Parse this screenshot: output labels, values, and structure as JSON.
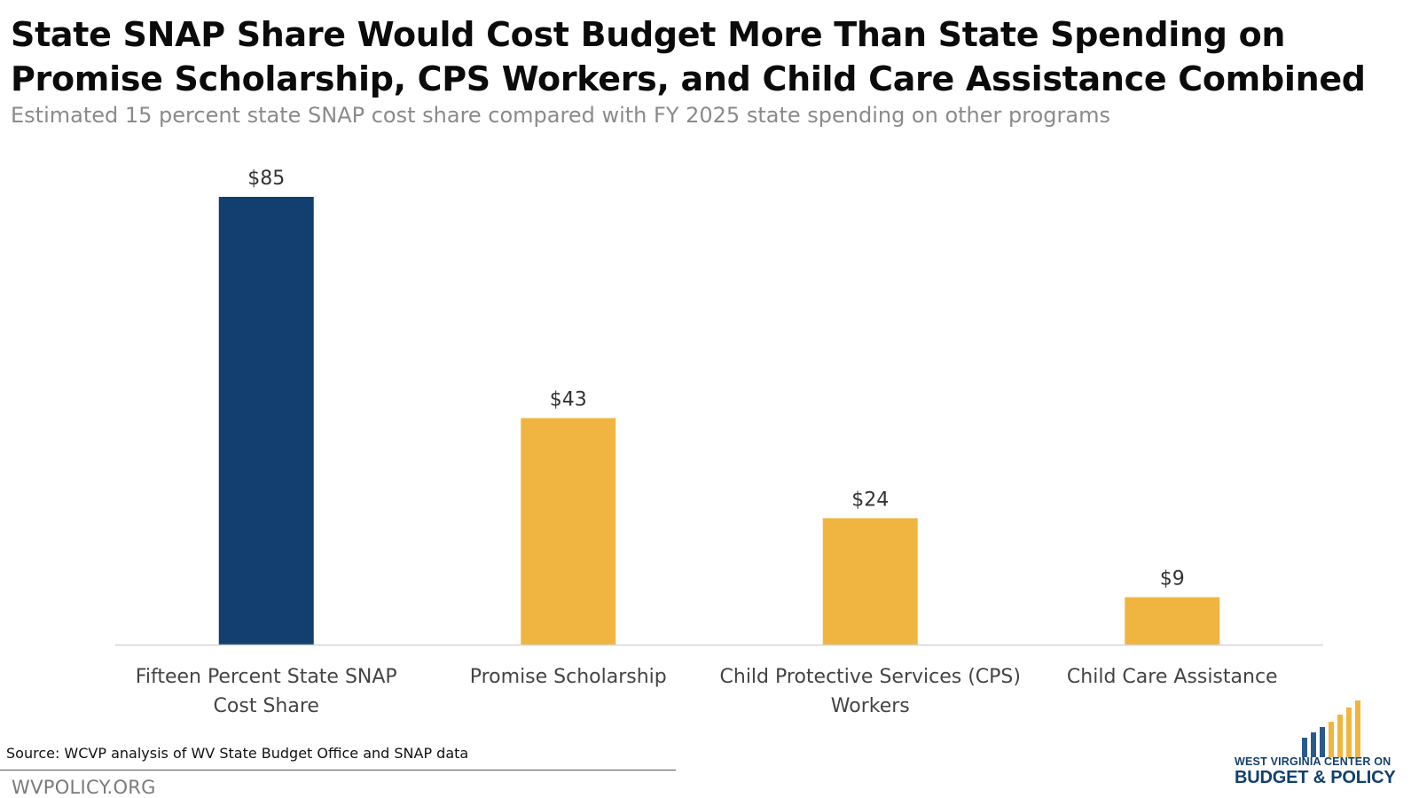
{
  "chart_data": {
    "type": "bar",
    "title": "State SNAP Share Would Cost Budget More Than State Spending on Promise Scholarship, CPS Workers, and Child Care Assistance Combined",
    "subtitle": "Estimated 15 percent state SNAP cost share compared with FY 2025 state spending on other programs",
    "categories": [
      [
        "Fifteen Percent State SNAP",
        "Cost Share"
      ],
      [
        "Promise Scholarship"
      ],
      [
        "Child Protective Services  (CPS)",
        "Workers"
      ],
      [
        "Child Care Assistance"
      ]
    ],
    "values": [
      85,
      43,
      24,
      9
    ],
    "value_labels": [
      "$85",
      "$43",
      "$24",
      "$9"
    ],
    "bar_colors": [
      "#123f70",
      "#f0b541",
      "#f0b541",
      "#f0b541"
    ],
    "ylim": [
      0,
      85
    ],
    "grid": false,
    "legend": "none"
  },
  "footer": {
    "source": "Source: WCVP analysis of WV State Budget Office and SNAP data",
    "site": "WVPOLICY.ORG"
  },
  "logo": {
    "line1": "WEST VIRGINIA CENTER ON",
    "line2": "BUDGET & POLICY",
    "bar_colors": [
      "#2a5a8c",
      "#2a5a8c",
      "#2a5a8c",
      "#f0b541",
      "#f0b541",
      "#f0b541",
      "#f0b541"
    ]
  }
}
